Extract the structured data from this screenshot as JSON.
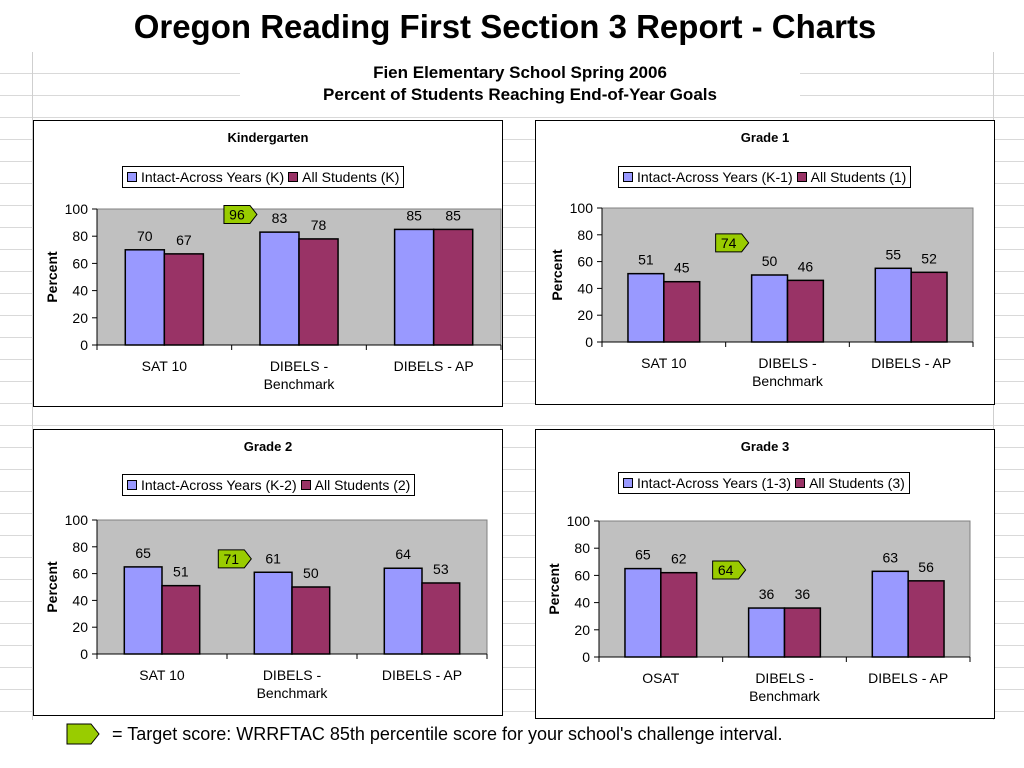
{
  "slide_title": "Oregon Reading First Section 3 Report - Charts",
  "report": {
    "line1": "Fien Elementary School Spring 2006",
    "line2": "Percent of Students Reaching End-of-Year Goals"
  },
  "footnote": "= Target score: WRRFTAC 85th percentile score for your school's challenge interval.",
  "colors": {
    "intact": "#9999ff",
    "all": "#993366",
    "plot_bg": "#c0c0c0",
    "target": "#99cc00"
  },
  "chart_data": [
    {
      "type": "bar",
      "title": "Kindergarten",
      "ylabel": "Percent",
      "ylim": [
        0,
        100
      ],
      "yticks": [
        0,
        20,
        40,
        60,
        80,
        100
      ],
      "categories": [
        "SAT 10",
        "DIBELS - Benchmark",
        "DIBELS - AP"
      ],
      "series": [
        {
          "name": "Intact-Across Years (K)",
          "values": [
            70,
            83,
            85
          ]
        },
        {
          "name": "All Students (K)",
          "values": [
            67,
            78,
            85
          ]
        }
      ],
      "target": {
        "value": "96",
        "category_index": 1
      },
      "legend_position": "top-center",
      "grid": false
    },
    {
      "type": "bar",
      "title": "Grade 1",
      "ylabel": "Percent",
      "ylim": [
        0,
        100
      ],
      "yticks": [
        0,
        20,
        40,
        60,
        80,
        100
      ],
      "categories": [
        "SAT 10",
        "DIBELS - Benchmark",
        "DIBELS - AP"
      ],
      "series": [
        {
          "name": "Intact-Across Years (K-1)",
          "values": [
            51,
            50,
            55
          ]
        },
        {
          "name": "All Students (1)",
          "values": [
            45,
            46,
            52
          ]
        }
      ],
      "target": {
        "value": "74",
        "category_index": 1
      },
      "legend_position": "top-center",
      "grid": false
    },
    {
      "type": "bar",
      "title": "Grade 2",
      "ylabel": "Percent",
      "ylim": [
        0,
        100
      ],
      "yticks": [
        0,
        20,
        40,
        60,
        80,
        100
      ],
      "categories": [
        "SAT 10",
        "DIBELS - Benchmark",
        "DIBELS - AP"
      ],
      "series": [
        {
          "name": "Intact-Across Years (K-2)",
          "values": [
            65,
            61,
            64
          ]
        },
        {
          "name": "All Students (2)",
          "values": [
            51,
            50,
            53
          ]
        }
      ],
      "target": {
        "value": "71",
        "category_index": 1
      },
      "legend_position": "top-center",
      "grid": false
    },
    {
      "type": "bar",
      "title": "Grade 3",
      "ylabel": "Percent",
      "ylim": [
        0,
        100
      ],
      "yticks": [
        0,
        20,
        40,
        60,
        80,
        100
      ],
      "categories": [
        "OSAT",
        "DIBELS - Benchmark",
        "DIBELS - AP"
      ],
      "series": [
        {
          "name": "Intact-Across Years (1-3)",
          "values": [
            65,
            36,
            63
          ]
        },
        {
          "name": "All Students (3)",
          "values": [
            62,
            36,
            56
          ]
        }
      ],
      "target": {
        "value": "64",
        "category_index": 1
      },
      "legend_position": "top-center",
      "grid": false
    }
  ]
}
